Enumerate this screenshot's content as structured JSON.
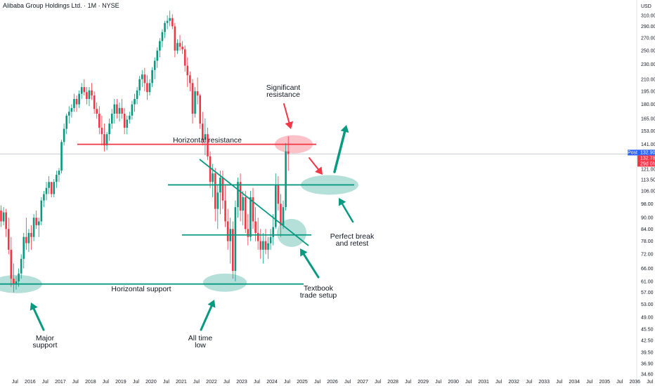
{
  "chart_data": {
    "type": "candlestick",
    "title": "Alibaba Group Holdings Ltd. · 1M · NYSE",
    "currency": "USD",
    "y_ticks": [
      "310.00",
      "290.00",
      "270.00",
      "250.00",
      "230.00",
      "210.00",
      "195.00",
      "180.00",
      "165.00",
      "153.00",
      "141.00",
      "131.00",
      "121.00",
      "113.50",
      "106.00",
      "98.00",
      "90.00",
      "84.00",
      "78.00",
      "72.00",
      "66.00",
      "61.00",
      "57.00",
      "53.00",
      "49.00",
      "45.50",
      "42.50",
      "39.50",
      "36.90",
      "34.60"
    ],
    "x_ticks": [
      "Jul",
      "2016",
      "Jul",
      "2017",
      "Jul",
      "2018",
      "Jul",
      "2019",
      "Jul",
      "2020",
      "Jul",
      "2021",
      "Jul",
      "2022",
      "Jul",
      "2023",
      "Jul",
      "2024",
      "Jul",
      "2025",
      "Jul",
      "2026",
      "Jul",
      "2027",
      "Jul",
      "2028",
      "Jul",
      "2029",
      "Jul",
      "2030",
      "Jul",
      "2031",
      "Jul",
      "2032",
      "Jul",
      "2033",
      "Jul",
      "2034",
      "Jul",
      "2035",
      "Jul",
      "2036",
      "Jul"
    ],
    "scale": "log",
    "ylim": [
      33.5,
      330
    ],
    "up_color": "#089981",
    "down_color": "#f23645",
    "price_badges": [
      {
        "label": "Post",
        "value": "132.90",
        "color": "#2962ff"
      },
      {
        "label": "",
        "value": "132.78",
        "color": "#f23645"
      },
      {
        "label": "",
        "value": "29d 0h",
        "color": "#f23645"
      }
    ],
    "annotations": {
      "significant_resistance": [
        "Significant",
        "resistance"
      ],
      "horizontal_resistance": "Horizontal resistance",
      "perfect_break": [
        "Perfect break",
        "and retest"
      ],
      "textbook": [
        "Textbook",
        "trade setup"
      ],
      "horizontal_support": "Horizontal support",
      "major_support": [
        "Major",
        "support"
      ],
      "all_time_low": [
        "All time",
        "low"
      ]
    },
    "levels": {
      "resistance": 141,
      "retest": 110,
      "breakout": 81,
      "support": 60
    },
    "candles": [
      [
        94,
        97,
        85,
        88
      ],
      [
        88,
        96,
        86,
        93
      ],
      [
        93,
        95,
        80,
        84
      ],
      [
        84,
        90,
        72,
        74
      ],
      [
        74,
        80,
        59,
        62
      ],
      [
        62,
        68,
        57,
        60
      ],
      [
        60,
        63,
        58,
        61
      ],
      [
        61,
        66,
        59,
        64
      ],
      [
        64,
        72,
        62,
        70
      ],
      [
        70,
        82,
        66,
        80
      ],
      [
        80,
        90,
        74,
        77
      ],
      [
        77,
        84,
        73,
        82
      ],
      [
        82,
        86,
        74,
        80
      ],
      [
        80,
        92,
        78,
        90
      ],
      [
        90,
        94,
        84,
        86
      ],
      [
        86,
        90,
        80,
        88
      ],
      [
        88,
        102,
        86,
        100
      ],
      [
        100,
        106,
        96,
        104
      ],
      [
        104,
        112,
        100,
        108
      ],
      [
        108,
        116,
        104,
        112
      ],
      [
        112,
        112,
        102,
        104
      ],
      [
        104,
        114,
        102,
        112
      ],
      [
        112,
        120,
        108,
        117
      ],
      [
        117,
        122,
        112,
        120
      ],
      [
        120,
        145,
        118,
        143
      ],
      [
        143,
        160,
        140,
        155
      ],
      [
        155,
        170,
        150,
        168
      ],
      [
        168,
        178,
        160,
        172
      ],
      [
        172,
        180,
        166,
        176
      ],
      [
        176,
        192,
        172,
        186
      ],
      [
        186,
        190,
        172,
        180
      ],
      [
        180,
        196,
        176,
        192
      ],
      [
        192,
        205,
        186,
        200
      ],
      [
        200,
        210,
        190,
        194
      ],
      [
        194,
        200,
        180,
        186
      ],
      [
        186,
        200,
        178,
        196
      ],
      [
        196,
        205,
        185,
        190
      ],
      [
        190,
        195,
        170,
        175
      ],
      [
        175,
        182,
        165,
        170
      ],
      [
        170,
        178,
        150,
        156
      ],
      [
        156,
        168,
        140,
        150
      ],
      [
        150,
        160,
        135,
        140
      ],
      [
        140,
        152,
        136,
        150
      ],
      [
        150,
        165,
        144,
        160
      ],
      [
        160,
        175,
        155,
        170
      ],
      [
        170,
        186,
        160,
        180
      ],
      [
        180,
        186,
        165,
        170
      ],
      [
        170,
        182,
        162,
        176
      ],
      [
        176,
        186,
        165,
        170
      ],
      [
        170,
        176,
        150,
        156
      ],
      [
        156,
        168,
        150,
        164
      ],
      [
        164,
        172,
        160,
        168
      ],
      [
        168,
        184,
        164,
        180
      ],
      [
        180,
        192,
        172,
        186
      ],
      [
        186,
        200,
        180,
        196
      ],
      [
        196,
        214,
        190,
        210
      ],
      [
        210,
        222,
        200,
        216
      ],
      [
        216,
        225,
        195,
        205
      ],
      [
        205,
        215,
        185,
        194
      ],
      [
        194,
        210,
        190,
        205
      ],
      [
        205,
        226,
        200,
        222
      ],
      [
        222,
        240,
        210,
        235
      ],
      [
        235,
        255,
        225,
        250
      ],
      [
        250,
        270,
        240,
        265
      ],
      [
        265,
        285,
        255,
        280
      ],
      [
        280,
        300,
        270,
        296
      ],
      [
        296,
        310,
        285,
        300
      ],
      [
        300,
        319,
        290,
        305
      ],
      [
        305,
        312,
        285,
        290
      ],
      [
        290,
        296,
        240,
        250
      ],
      [
        250,
        268,
        245,
        262
      ],
      [
        262,
        275,
        250,
        256
      ],
      [
        256,
        265,
        245,
        252
      ],
      [
        252,
        258,
        220,
        228
      ],
      [
        228,
        240,
        200,
        215
      ],
      [
        215,
        220,
        195,
        205
      ],
      [
        205,
        210,
        160,
        170
      ],
      [
        170,
        200,
        166,
        195
      ],
      [
        195,
        212,
        180,
        190
      ],
      [
        190,
        192,
        155,
        160
      ],
      [
        160,
        172,
        140,
        145
      ],
      [
        145,
        165,
        132,
        150
      ],
      [
        150,
        156,
        128,
        131
      ],
      [
        131,
        135,
        108,
        112
      ],
      [
        112,
        125,
        102,
        118
      ],
      [
        118,
        122,
        88,
        95
      ],
      [
        95,
        110,
        84,
        105
      ],
      [
        105,
        120,
        92,
        115
      ],
      [
        115,
        120,
        95,
        100
      ],
      [
        100,
        110,
        85,
        88
      ],
      [
        88,
        95,
        74,
        78
      ],
      [
        78,
        90,
        68,
        84
      ],
      [
        84,
        88,
        62,
        65
      ],
      [
        65,
        100,
        61,
        96
      ],
      [
        96,
        115,
        90,
        112
      ],
      [
        112,
        118,
        88,
        94
      ],
      [
        94,
        106,
        86,
        102
      ],
      [
        102,
        106,
        82,
        84
      ],
      [
        84,
        92,
        76,
        80
      ],
      [
        80,
        106,
        78,
        102
      ],
      [
        102,
        108,
        84,
        88
      ],
      [
        88,
        96,
        78,
        82
      ],
      [
        82,
        90,
        74,
        78
      ],
      [
        78,
        84,
        70,
        74
      ],
      [
        74,
        82,
        68,
        78
      ],
      [
        78,
        84,
        72,
        74
      ],
      [
        74,
        80,
        70,
        77
      ],
      [
        77,
        84,
        74,
        80
      ],
      [
        80,
        92,
        76,
        85
      ],
      [
        85,
        118,
        84,
        110
      ],
      [
        110,
        116,
        94,
        98
      ],
      [
        98,
        104,
        80,
        86
      ],
      [
        86,
        100,
        84,
        96
      ],
      [
        96,
        142,
        94,
        135
      ],
      [
        135,
        148,
        120,
        132.9
      ]
    ]
  }
}
